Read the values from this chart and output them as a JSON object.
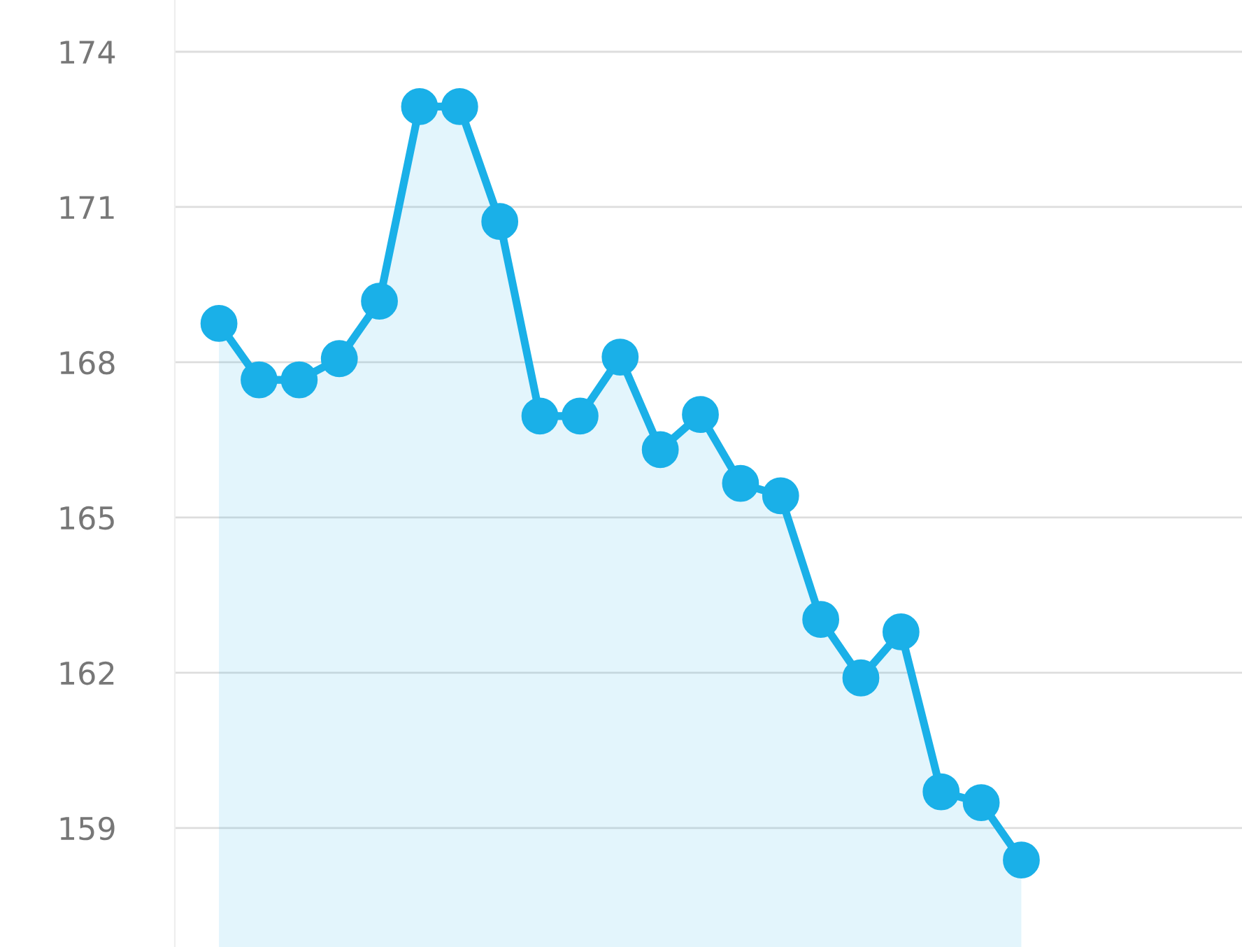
{
  "chart_data": {
    "type": "area",
    "categories": [
      null,
      null,
      null,
      null,
      null,
      null,
      null,
      null,
      null,
      null,
      null,
      null,
      null,
      null,
      null,
      null,
      null,
      null,
      null,
      null,
      null
    ],
    "series": [
      {
        "color": "#1ab0e8",
        "values": [
          168.75,
          167.66,
          167.66,
          168.07,
          169.18,
          172.94,
          172.94,
          170.72,
          166.96,
          166.96,
          168.1,
          166.31,
          166.99,
          165.66,
          165.42,
          163.03,
          161.9,
          162.79,
          159.7,
          159.49,
          158.38
        ]
      }
    ],
    "ylim": [
      156.7,
      175
    ],
    "yticks": [
      159,
      162,
      165,
      168,
      171,
      174
    ],
    "grid": "y",
    "marker": "circle",
    "line_style": "solid",
    "tick_labels": "y"
  }
}
